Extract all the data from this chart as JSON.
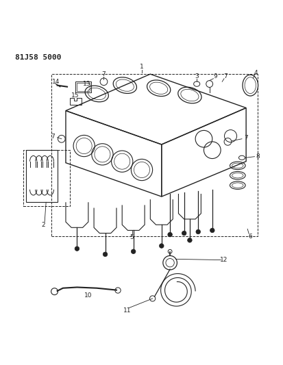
{
  "title_code": "81J58 5000",
  "background_color": "#ffffff",
  "line_color": "#222222",
  "figsize": [
    4.14,
    5.33
  ],
  "dpi": 100
}
